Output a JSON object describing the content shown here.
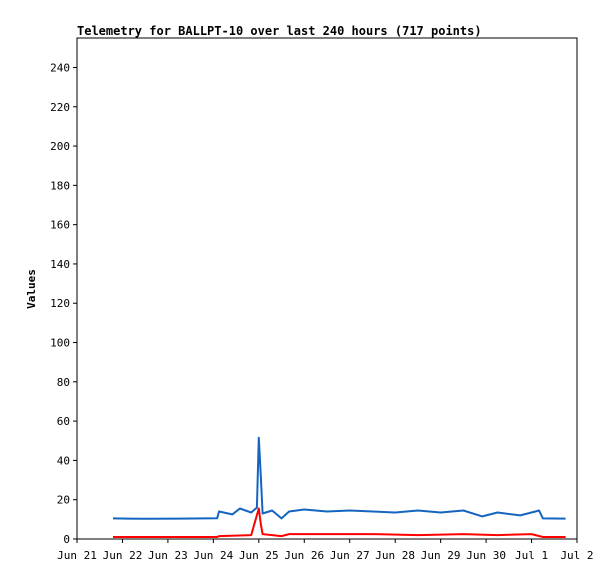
{
  "chart_data": {
    "type": "line",
    "title": "Telemetry for BALLPT-10 over last 240 hours (717 points)",
    "xlabel": "",
    "ylabel": "Values",
    "ylim": [
      0,
      255
    ],
    "xlim": [
      "2024-06-21 00:00",
      "2024-07-02 00:00"
    ],
    "x_ticks": [
      "Jun 21",
      "Jun 22",
      "Jun 23",
      "Jun 24",
      "Jun 25",
      "Jun 26",
      "Jun 27",
      "Jun 28",
      "Jun 29",
      "Jun 30",
      "Jul 1",
      "Jul 2"
    ],
    "y_ticks": [
      0,
      20,
      40,
      60,
      80,
      100,
      120,
      140,
      160,
      180,
      200,
      220,
      240
    ],
    "grid": false,
    "legend": "none",
    "series": [
      {
        "color": "#1565c0",
        "points": [
          [
            "2024-06-21 19:00",
            10.5
          ],
          [
            "2024-06-22 12:00",
            10.3
          ],
          [
            "2024-06-23 06:00",
            10.4
          ],
          [
            "2024-06-24 02:00",
            10.6
          ],
          [
            "2024-06-24 03:00",
            14.0
          ],
          [
            "2024-06-24 10:00",
            12.5
          ],
          [
            "2024-06-24 14:00",
            15.5
          ],
          [
            "2024-06-24 20:00",
            13.5
          ],
          [
            "2024-06-24 23:00",
            16.0
          ],
          [
            "2024-06-25 00:00",
            51.5
          ],
          [
            "2024-06-25 01:00",
            33.0
          ],
          [
            "2024-06-25 02:00",
            13.0
          ],
          [
            "2024-06-25 07:00",
            14.5
          ],
          [
            "2024-06-25 12:00",
            10.5
          ],
          [
            "2024-06-25 16:00",
            14.0
          ],
          [
            "2024-06-26 00:00",
            15.0
          ],
          [
            "2024-06-26 12:00",
            14.0
          ],
          [
            "2024-06-27 00:00",
            14.5
          ],
          [
            "2024-06-27 12:00",
            14.0
          ],
          [
            "2024-06-28 00:00",
            13.5
          ],
          [
            "2024-06-28 12:00",
            14.5
          ],
          [
            "2024-06-29 00:00",
            13.5
          ],
          [
            "2024-06-29 12:00",
            14.5
          ],
          [
            "2024-06-29 22:00",
            11.5
          ],
          [
            "2024-06-30 06:00",
            13.5
          ],
          [
            "2024-06-30 18:00",
            12.0
          ],
          [
            "2024-07-01 00:00",
            13.5
          ],
          [
            "2024-07-01 04:00",
            14.5
          ],
          [
            "2024-07-01 06:00",
            10.5
          ],
          [
            "2024-07-01 18:00",
            10.4
          ]
        ]
      },
      {
        "color": "#ff0000",
        "points": [
          [
            "2024-06-21 19:00",
            1.0
          ],
          [
            "2024-06-22 12:00",
            1.0
          ],
          [
            "2024-06-23 06:00",
            1.0
          ],
          [
            "2024-06-24 02:00",
            1.0
          ],
          [
            "2024-06-24 03:00",
            1.5
          ],
          [
            "2024-06-24 20:00",
            2.0
          ],
          [
            "2024-06-25 00:00",
            15.5
          ],
          [
            "2024-06-25 01:00",
            8.0
          ],
          [
            "2024-06-25 02:00",
            2.5
          ],
          [
            "2024-06-25 12:00",
            1.5
          ],
          [
            "2024-06-25 16:00",
            2.5
          ],
          [
            "2024-06-26 12:00",
            2.5
          ],
          [
            "2024-06-27 12:00",
            2.5
          ],
          [
            "2024-06-28 12:00",
            2.0
          ],
          [
            "2024-06-29 12:00",
            2.5
          ],
          [
            "2024-06-30 06:00",
            2.0
          ],
          [
            "2024-07-01 00:00",
            2.5
          ],
          [
            "2024-07-01 06:00",
            1.0
          ],
          [
            "2024-07-01 18:00",
            1.0
          ]
        ]
      }
    ]
  }
}
